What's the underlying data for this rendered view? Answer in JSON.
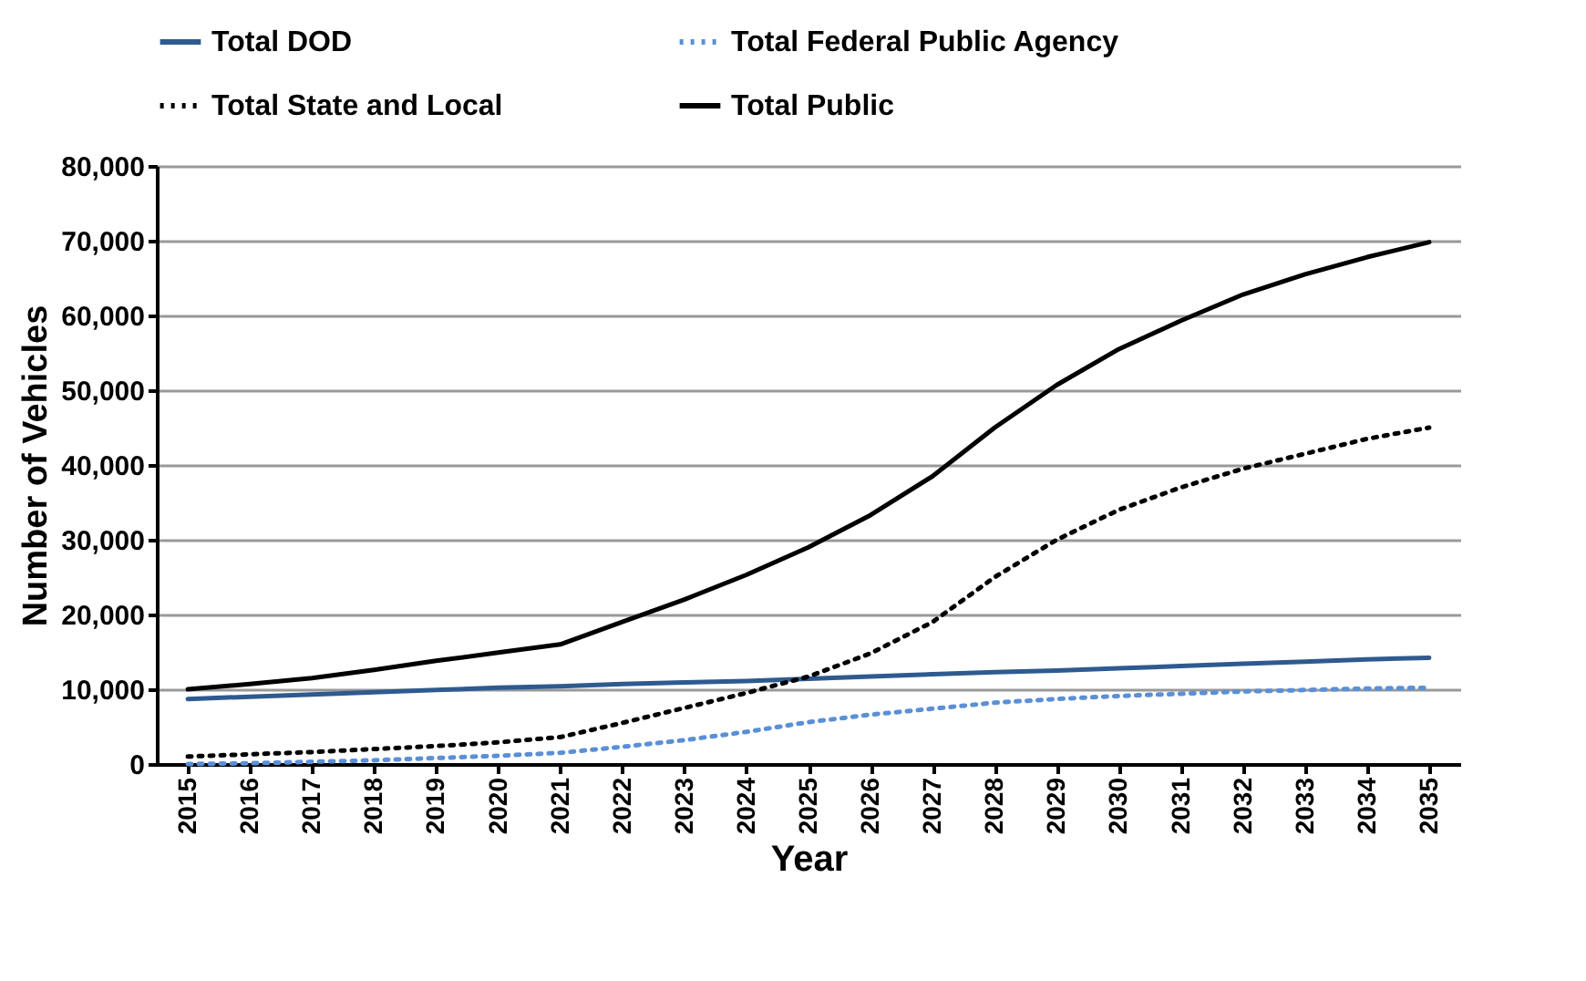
{
  "chart_data": {
    "type": "line",
    "xlabel": "Year",
    "ylabel": "Number of Vehicles",
    "categories": [
      "2015",
      "2016",
      "2017",
      "2018",
      "2019",
      "2020",
      "2021",
      "2022",
      "2023",
      "2024",
      "2025",
      "2026",
      "2027",
      "2028",
      "2029",
      "2030",
      "2031",
      "2032",
      "2033",
      "2034",
      "2035"
    ],
    "series": [
      {
        "name": "Total DOD",
        "color": "#2e5a8f",
        "line_style": "solid",
        "values": [
          8700,
          9000,
          9300,
          9600,
          9900,
          10200,
          10400,
          10700,
          10900,
          11100,
          11400,
          11700,
          12000,
          12300,
          12500,
          12800,
          13100,
          13400,
          13700,
          14000,
          14200
        ]
      },
      {
        "name": "Total Federal Public Agency",
        "color": "#5b8fd6",
        "line_style": "dotted",
        "values": [
          0,
          100,
          300,
          500,
          800,
          1100,
          1500,
          2300,
          3200,
          4300,
          5600,
          6600,
          7400,
          8200,
          8700,
          9100,
          9400,
          9700,
          9900,
          10100,
          10200
        ]
      },
      {
        "name": "Total State and Local",
        "color": "#000000",
        "line_style": "dotted",
        "values": [
          1000,
          1300,
          1600,
          2000,
          2400,
          2900,
          3600,
          5500,
          7500,
          9500,
          11700,
          14800,
          19000,
          25000,
          30000,
          34000,
          37000,
          39500,
          41500,
          43500,
          45000
        ]
      },
      {
        "name": "Total Public",
        "color": "#000000",
        "line_style": "solid",
        "values": [
          10000,
          10700,
          11500,
          12600,
          13800,
          14900,
          16000,
          19000,
          22000,
          25300,
          29000,
          33300,
          38500,
          45000,
          50700,
          55500,
          59300,
          62800,
          65500,
          67800,
          69800
        ]
      }
    ],
    "ylim": [
      0,
      80000
    ],
    "yticks": [
      0,
      {
        "value": 10000,
        "label": "10,000"
      },
      {
        "value": 20000,
        "label": "20,000"
      },
      {
        "value": 30000,
        "label": "30,000"
      },
      {
        "value": 40000,
        "label": "40,000"
      },
      {
        "value": 50000,
        "label": "50,000"
      },
      {
        "value": 60000,
        "label": "60,000"
      },
      {
        "value": 70000,
        "label": "70,000"
      },
      {
        "value": 80000,
        "label": "80,000"
      }
    ],
    "grid": "y",
    "legend": "top",
    "marker": "none"
  }
}
